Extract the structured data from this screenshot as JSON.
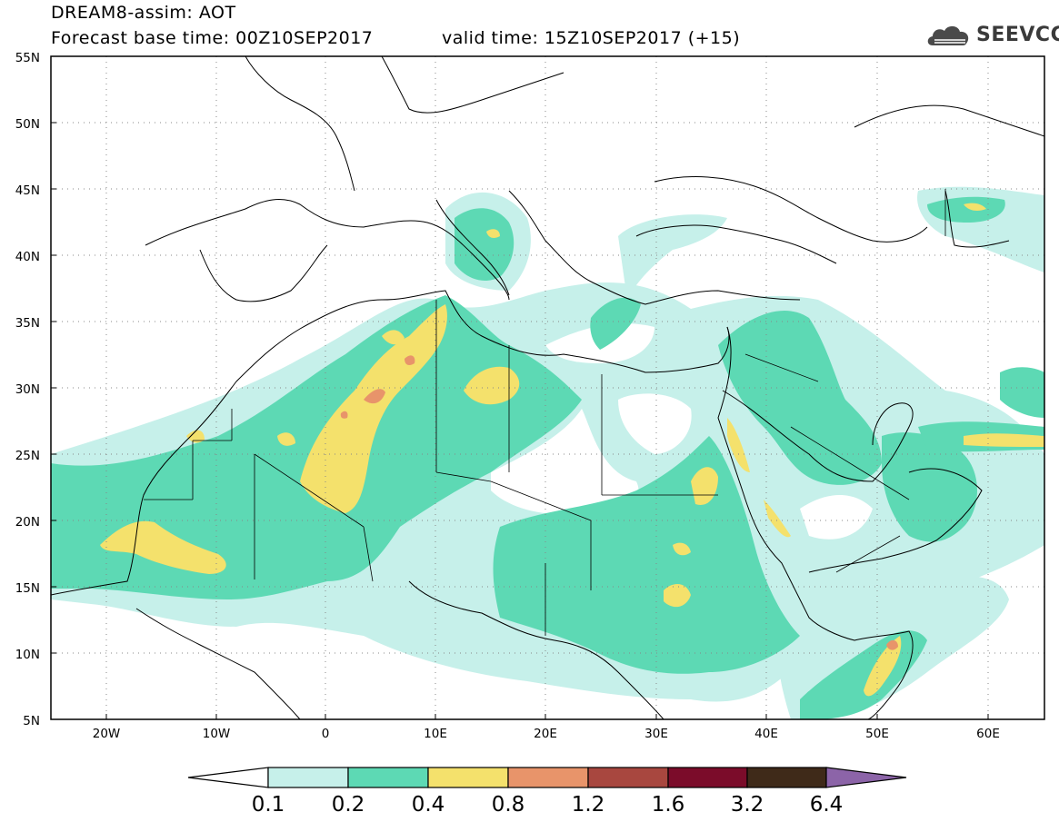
{
  "header": {
    "title": "DREAM8-assim: AOT",
    "base_time": "Forecast base time: 00Z10SEP2017",
    "valid_time": "valid time: 15Z10SEP2017 (+15)",
    "logo_text": "SEEVCCC",
    "logo_icon": "cloud-icon"
  },
  "map": {
    "lon_range": [
      -25,
      65
    ],
    "lat_range": [
      5,
      55
    ],
    "lon_labels": [
      "20W",
      "10W",
      "0",
      "10E",
      "20E",
      "30E",
      "40E",
      "50E",
      "60E"
    ],
    "lat_labels": [
      "55N",
      "50N",
      "45N",
      "40N",
      "35N",
      "30N",
      "25N",
      "20N",
      "15N",
      "10N",
      "5N"
    ],
    "gridlines": true
  },
  "colorbar": {
    "labels": [
      "0.1",
      "0.2",
      "0.4",
      "0.8",
      "1.2",
      "1.6",
      "3.2",
      "6.4"
    ],
    "colors": [
      "#c6f0ea",
      "#5dd9b4",
      "#f4e16c",
      "#e8946a",
      "#a8473f",
      "#7b0c2a",
      "#3f2a19"
    ],
    "under_color": "#ffffff",
    "over_color": "#8c64a8"
  }
}
